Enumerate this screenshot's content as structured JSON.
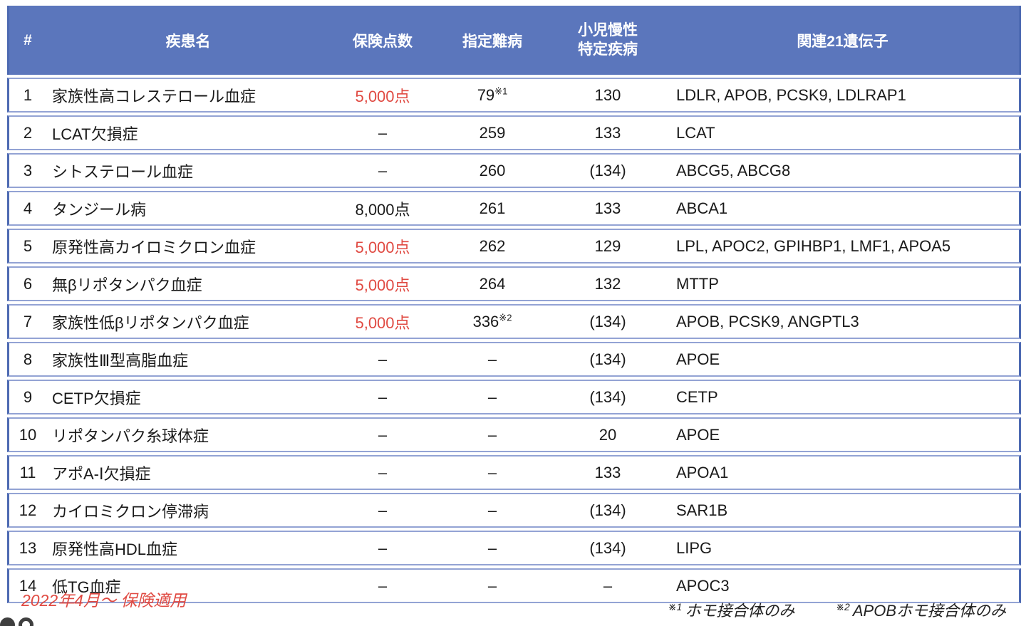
{
  "colors": {
    "header_blue": "#5b76bc",
    "border_light": "#93a3d4",
    "border_dark": "#4d6ab2",
    "accent_red": "#e04a42"
  },
  "table": {
    "headers": {
      "num": "#",
      "disease": "疾患名",
      "insurance": "保険点数",
      "nanbyo": "指定難病",
      "pediatric": "小児慢性\n特定疾病",
      "genes": "関連21遺伝子"
    },
    "rows": [
      {
        "num": "1",
        "disease": "家族性高コレステロール血症",
        "insurance": "5,000点",
        "insurance_red": true,
        "nanbyo": "79",
        "nanbyo_sup": "※1",
        "pediatric": "130",
        "genes": "LDLR, APOB, PCSK9, LDLRAP1"
      },
      {
        "num": "2",
        "disease": "LCAT欠損症",
        "insurance": "–",
        "insurance_red": false,
        "nanbyo": "259",
        "nanbyo_sup": "",
        "pediatric": "133",
        "genes": "LCAT"
      },
      {
        "num": "3",
        "disease": "シトステロール血症",
        "insurance": "–",
        "insurance_red": false,
        "nanbyo": "260",
        "nanbyo_sup": "",
        "pediatric": "(134)",
        "genes": "ABCG5, ABCG8"
      },
      {
        "num": "4",
        "disease": "タンジール病",
        "insurance": "8,000点",
        "insurance_red": false,
        "nanbyo": "261",
        "nanbyo_sup": "",
        "pediatric": "133",
        "genes": "ABCA1"
      },
      {
        "num": "5",
        "disease": "原発性高カイロミクロン血症",
        "insurance": "5,000点",
        "insurance_red": true,
        "nanbyo": "262",
        "nanbyo_sup": "",
        "pediatric": "129",
        "genes": "LPL, APOC2, GPIHBP1, LMF1, APOA5"
      },
      {
        "num": "6",
        "disease": "無βリポタンパク血症",
        "insurance": "5,000点",
        "insurance_red": true,
        "nanbyo": "264",
        "nanbyo_sup": "",
        "pediatric": "132",
        "genes": "MTTP"
      },
      {
        "num": "7",
        "disease": "家族性低βリポタンパク血症",
        "insurance": "5,000点",
        "insurance_red": true,
        "nanbyo": "336",
        "nanbyo_sup": "※2",
        "pediatric": "(134)",
        "genes": "APOB, PCSK9, ANGPTL3"
      },
      {
        "num": "8",
        "disease": "家族性Ⅲ型高脂血症",
        "insurance": "–",
        "insurance_red": false,
        "nanbyo": "–",
        "nanbyo_sup": "",
        "pediatric": "(134)",
        "genes": "APOE"
      },
      {
        "num": "9",
        "disease": "CETP欠損症",
        "insurance": "–",
        "insurance_red": false,
        "nanbyo": "–",
        "nanbyo_sup": "",
        "pediatric": "(134)",
        "genes": "CETP"
      },
      {
        "num": "10",
        "disease": "リポタンパク糸球体症",
        "insurance": "–",
        "insurance_red": false,
        "nanbyo": "–",
        "nanbyo_sup": "",
        "pediatric": "20",
        "genes": "APOE"
      },
      {
        "num": "11",
        "disease": "アポA-Ⅰ欠損症",
        "insurance": "–",
        "insurance_red": false,
        "nanbyo": "–",
        "nanbyo_sup": "",
        "pediatric": "133",
        "genes": "APOA1"
      },
      {
        "num": "12",
        "disease": "カイロミクロン停滞病",
        "insurance": "–",
        "insurance_red": false,
        "nanbyo": "–",
        "nanbyo_sup": "",
        "pediatric": "(134)",
        "genes": "SAR1B"
      },
      {
        "num": "13",
        "disease": "原発性高HDL血症",
        "insurance": "–",
        "insurance_red": false,
        "nanbyo": "–",
        "nanbyo_sup": "",
        "pediatric": "(134)",
        "genes": "LIPG"
      },
      {
        "num": "14",
        "disease": "低TG血症",
        "insurance": "–",
        "insurance_red": false,
        "nanbyo": "–",
        "nanbyo_sup": "",
        "pediatric": "–",
        "genes": "APOC3"
      }
    ]
  },
  "footer": {
    "note_left": "2022年4月～ 保険適用",
    "footnote1_sup": "※1",
    "footnote1_text": "ホモ接合体のみ",
    "footnote2_sup": "※2",
    "footnote2_text": "APOBホモ接合体のみ"
  }
}
